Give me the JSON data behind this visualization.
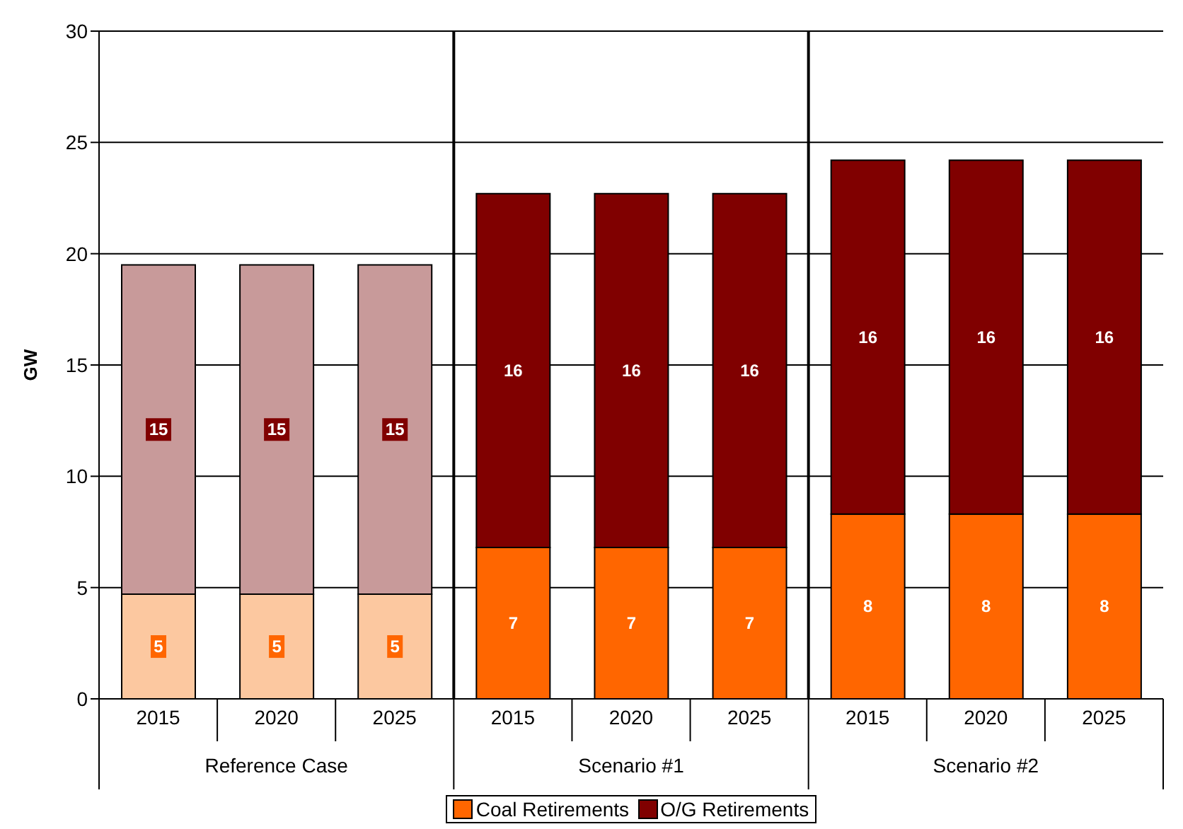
{
  "chart_data": {
    "type": "bar",
    "stacked": true,
    "ylabel": "GW",
    "categories": [
      "2015",
      "2020",
      "2025",
      "2015",
      "2020",
      "2025",
      "2015",
      "2020",
      "2025"
    ],
    "annotations": [
      "Reference Case",
      "Scenario #1",
      "Scenario #2"
    ],
    "series": [
      {
        "name": "Coal Retirements",
        "color": "#ff6600",
        "colors": [
          "#fcc8a0",
          "#fcc8a0",
          "#fcc8a0",
          "#ff6600",
          "#ff6600",
          "#ff6600",
          "#ff6600",
          "#ff6600",
          "#ff6600"
        ],
        "values": [
          4.7,
          4.7,
          4.7,
          6.8,
          6.8,
          6.8,
          8.3,
          8.3,
          8.3
        ],
        "value_labels": [
          "5",
          "5",
          "5",
          "7",
          "7",
          "7",
          "8",
          "8",
          "8"
        ]
      },
      {
        "name": "O/G Retirements",
        "color": "#800000",
        "colors": [
          "#c89a9a",
          "#c89a9a",
          "#c89a9a",
          "#800000",
          "#800000",
          "#800000",
          "#800000",
          "#800000",
          "#800000"
        ],
        "values": [
          14.8,
          14.8,
          14.8,
          15.9,
          15.9,
          15.9,
          15.9,
          15.9,
          15.9
        ],
        "value_labels": [
          "15",
          "15",
          "15",
          "16",
          "16",
          "16",
          "16",
          "16",
          "16"
        ]
      }
    ],
    "ylim": [
      0,
      30
    ],
    "yticks": [
      0,
      5,
      10,
      15,
      20,
      25,
      30
    ],
    "grid": "y",
    "legend": "bottom"
  }
}
